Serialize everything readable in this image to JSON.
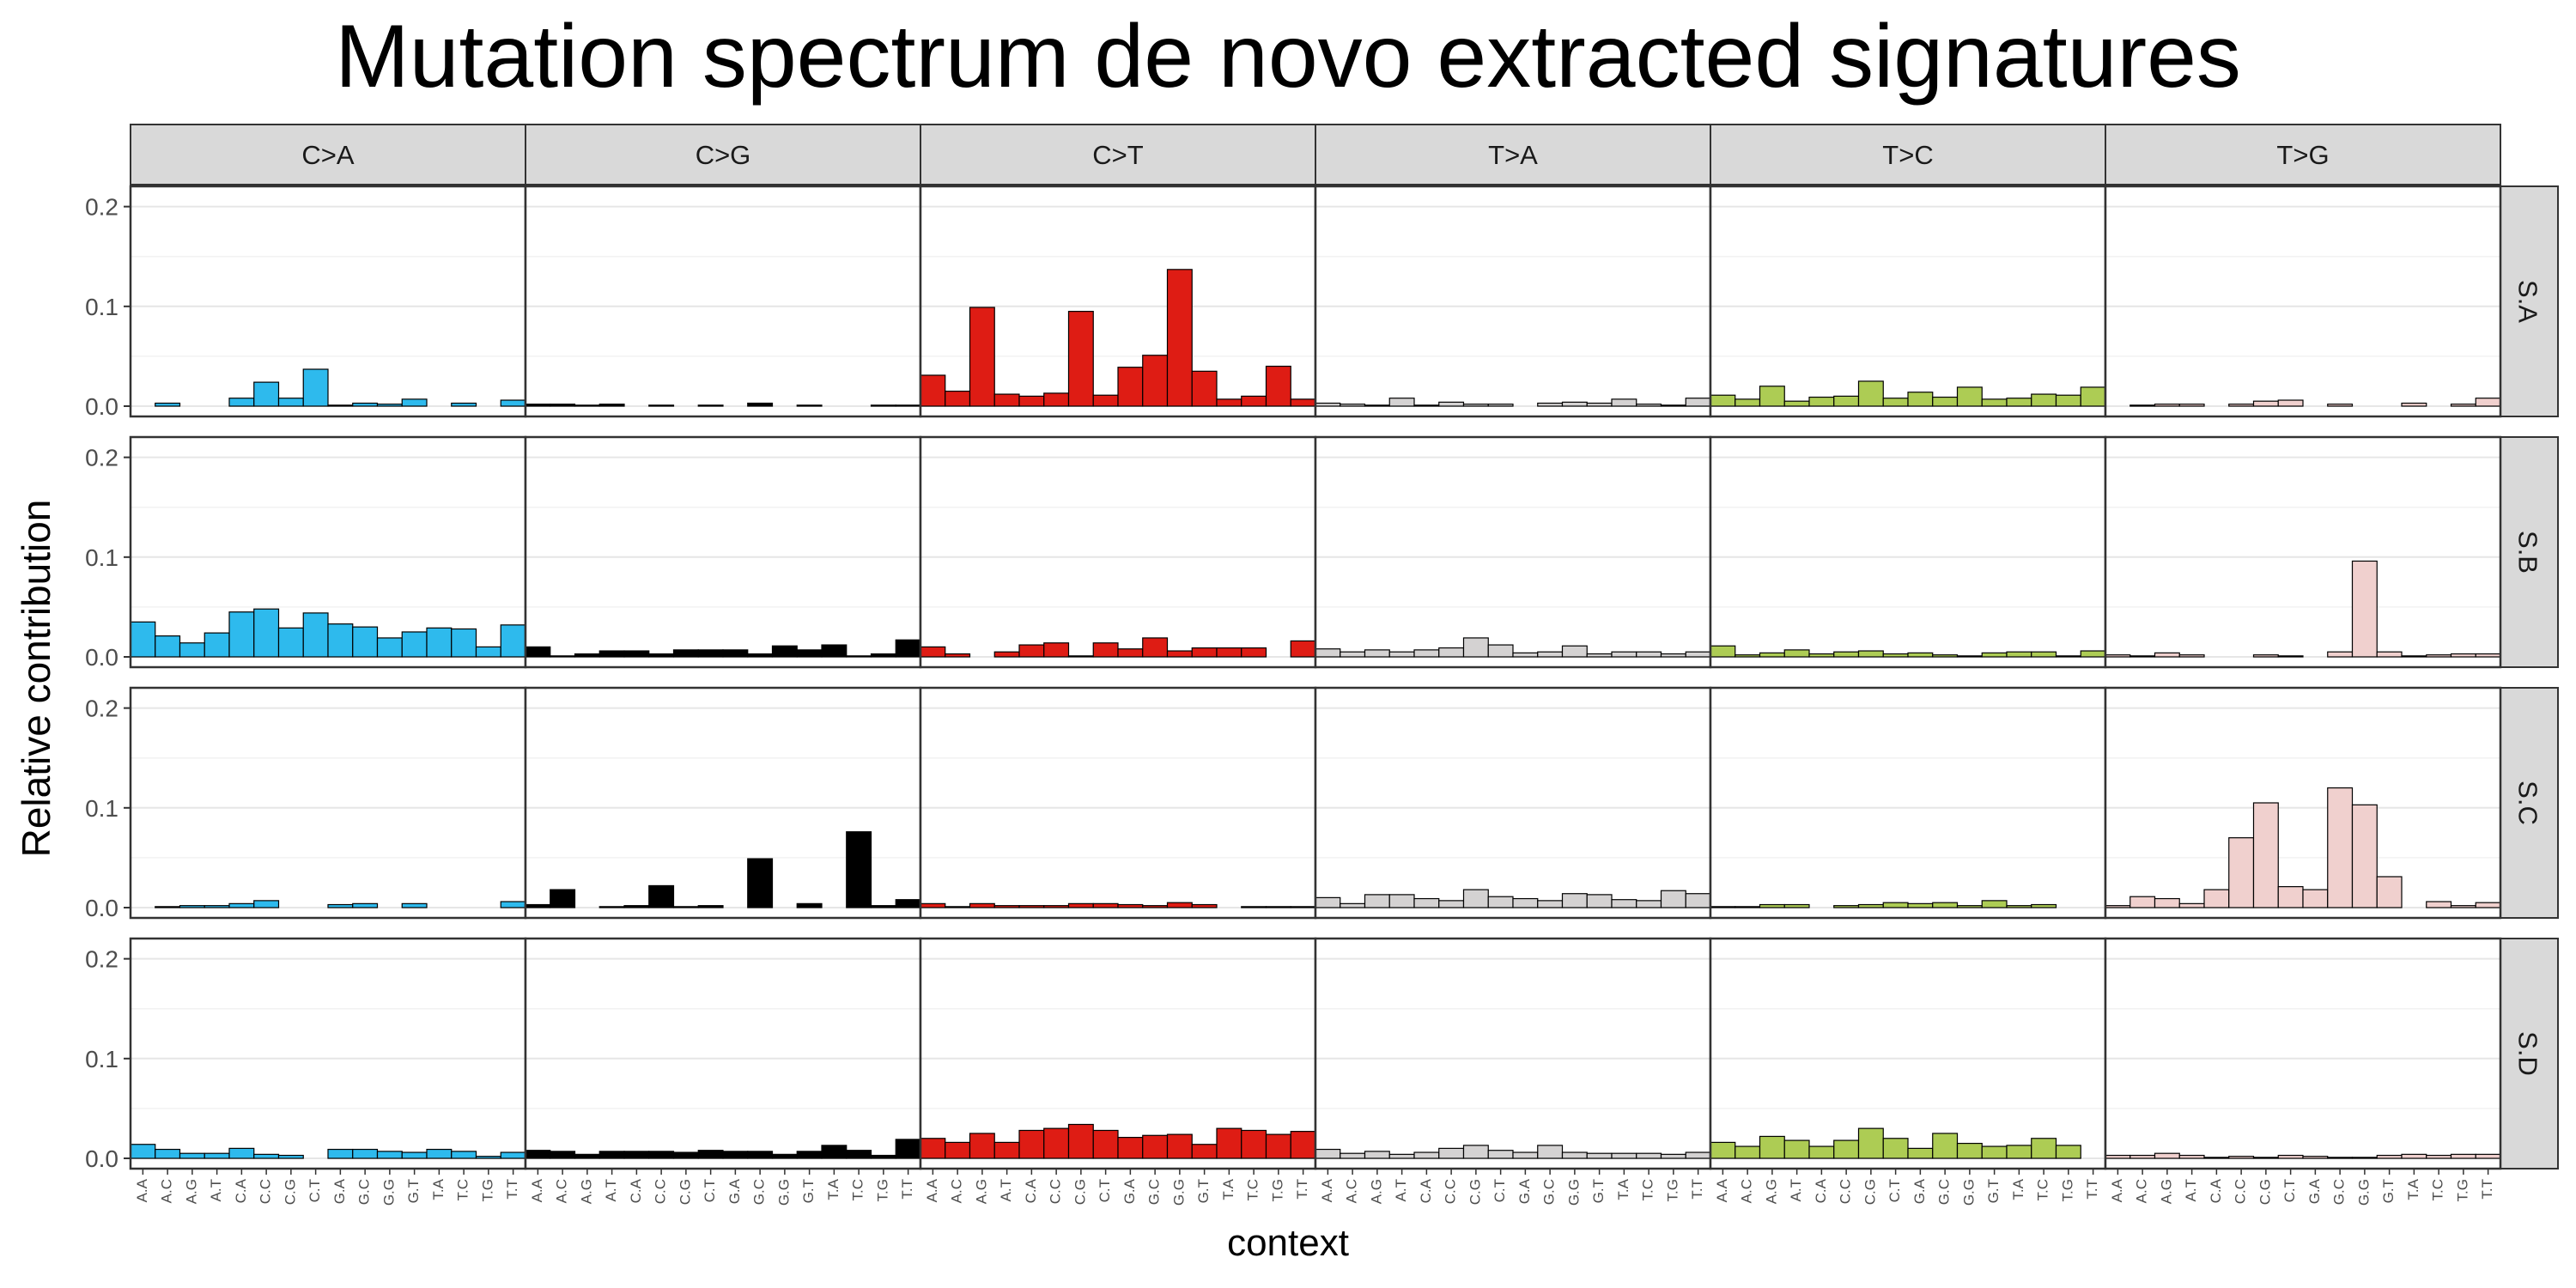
{
  "chart_data": {
    "type": "bar",
    "title": "Mutation spectrum de novo extracted signatures",
    "xlabel": "context",
    "ylabel": "Relative contribution",
    "ylim": [
      0,
      0.21
    ],
    "yticks": [
      0.0,
      0.1,
      0.2
    ],
    "ytick_labels": [
      "0.0",
      "0.1",
      "0.2"
    ],
    "grid": true,
    "facet_columns": [
      "C>A",
      "C>G",
      "C>T",
      "T>A",
      "T>C",
      "T>G"
    ],
    "facet_rows": [
      "S.A",
      "S.B",
      "S.C",
      "S.D"
    ],
    "colors": {
      "C>A": "#2EBAED",
      "C>G": "#000000",
      "C>T": "#DE1C14",
      "T>A": "#D4D2D2",
      "T>C": "#ADCC54",
      "T>G": "#F0D0CE"
    },
    "contexts": [
      "A.A",
      "A.C",
      "A.G",
      "A.T",
      "C.A",
      "C.C",
      "C.G",
      "C.T",
      "G.A",
      "G.C",
      "G.G",
      "G.T",
      "T.A",
      "T.C",
      "T.G",
      "T.T"
    ],
    "values": {
      "S.A": {
        "C>A": [
          0.0,
          0.003,
          0.0,
          0.0,
          0.008,
          0.024,
          0.008,
          0.037,
          0.001,
          0.003,
          0.002,
          0.007,
          0.0,
          0.003,
          0.0,
          0.006
        ],
        "C>G": [
          0.002,
          0.002,
          0.001,
          0.002,
          0.0,
          0.001,
          0.0,
          0.001,
          0.0,
          0.003,
          0.0,
          0.001,
          0.0,
          0.0,
          0.001,
          0.001
        ],
        "C>T": [
          0.031,
          0.015,
          0.099,
          0.012,
          0.01,
          0.013,
          0.095,
          0.011,
          0.039,
          0.051,
          0.137,
          0.035,
          0.007,
          0.01,
          0.04,
          0.007
        ],
        "T>A": [
          0.003,
          0.002,
          0.001,
          0.008,
          0.001,
          0.004,
          0.002,
          0.002,
          0.0,
          0.003,
          0.004,
          0.003,
          0.007,
          0.002,
          0.001,
          0.008
        ],
        "T>C": [
          0.011,
          0.007,
          0.02,
          0.005,
          0.009,
          0.01,
          0.025,
          0.008,
          0.014,
          0.009,
          0.019,
          0.007,
          0.008,
          0.012,
          0.011,
          0.019
        ],
        "T>G": [
          0.0,
          0.001,
          0.002,
          0.002,
          0.0,
          0.002,
          0.005,
          0.006,
          0.0,
          0.002,
          0.0,
          0.0,
          0.003,
          0.0,
          0.002,
          0.008
        ]
      },
      "S.B": {
        "C>A": [
          0.035,
          0.021,
          0.014,
          0.024,
          0.045,
          0.048,
          0.029,
          0.044,
          0.033,
          0.03,
          0.019,
          0.025,
          0.029,
          0.028,
          0.01,
          0.032
        ],
        "C>G": [
          0.01,
          0.001,
          0.003,
          0.006,
          0.006,
          0.003,
          0.007,
          0.007,
          0.007,
          0.003,
          0.011,
          0.007,
          0.012,
          0.001,
          0.003,
          0.017
        ],
        "C>T": [
          0.01,
          0.003,
          0.0,
          0.005,
          0.012,
          0.014,
          0.001,
          0.014,
          0.008,
          0.019,
          0.006,
          0.009,
          0.009,
          0.009,
          0.0,
          0.016
        ],
        "T>A": [
          0.008,
          0.005,
          0.007,
          0.005,
          0.007,
          0.009,
          0.019,
          0.012,
          0.004,
          0.005,
          0.011,
          0.003,
          0.005,
          0.005,
          0.003,
          0.005
        ],
        "T>C": [
          0.011,
          0.002,
          0.004,
          0.007,
          0.003,
          0.005,
          0.006,
          0.003,
          0.004,
          0.002,
          0.001,
          0.004,
          0.005,
          0.005,
          0.001,
          0.006
        ],
        "T>G": [
          0.002,
          0.001,
          0.004,
          0.002,
          0.0,
          0.0,
          0.002,
          0.001,
          0.0,
          0.005,
          0.096,
          0.005,
          0.001,
          0.002,
          0.003,
          0.003
        ]
      },
      "S.C": {
        "C>A": [
          0.0,
          0.001,
          0.002,
          0.002,
          0.004,
          0.007,
          0.0,
          0.0,
          0.003,
          0.004,
          0.0,
          0.004,
          0.0,
          0.0,
          0.0,
          0.006
        ],
        "C>G": [
          0.003,
          0.018,
          0.0,
          0.001,
          0.002,
          0.022,
          0.001,
          0.002,
          0.0,
          0.049,
          0.0,
          0.004,
          0.0,
          0.076,
          0.002,
          0.008
        ],
        "C>T": [
          0.004,
          0.001,
          0.004,
          0.002,
          0.002,
          0.002,
          0.004,
          0.004,
          0.003,
          0.002,
          0.005,
          0.003,
          0.0,
          0.001,
          0.001,
          0.001
        ],
        "T>A": [
          0.01,
          0.004,
          0.013,
          0.013,
          0.009,
          0.007,
          0.018,
          0.011,
          0.009,
          0.007,
          0.014,
          0.013,
          0.008,
          0.007,
          0.017,
          0.014
        ],
        "T>C": [
          0.001,
          0.001,
          0.003,
          0.003,
          0.0,
          0.002,
          0.003,
          0.005,
          0.004,
          0.005,
          0.002,
          0.007,
          0.002,
          0.003,
          0.0,
          0.0
        ],
        "T>G": [
          0.002,
          0.011,
          0.009,
          0.004,
          0.018,
          0.07,
          0.105,
          0.021,
          0.018,
          0.12,
          0.103,
          0.031,
          0.0,
          0.006,
          0.002,
          0.005
        ]
      },
      "S.D": {
        "C>A": [
          0.014,
          0.009,
          0.005,
          0.005,
          0.01,
          0.004,
          0.003,
          0.0,
          0.009,
          0.009,
          0.007,
          0.006,
          0.009,
          0.007,
          0.002,
          0.006
        ],
        "C>G": [
          0.008,
          0.007,
          0.004,
          0.007,
          0.007,
          0.007,
          0.006,
          0.008,
          0.007,
          0.007,
          0.004,
          0.007,
          0.013,
          0.008,
          0.003,
          0.019
        ],
        "C>T": [
          0.02,
          0.016,
          0.025,
          0.016,
          0.028,
          0.03,
          0.034,
          0.028,
          0.021,
          0.023,
          0.024,
          0.014,
          0.03,
          0.028,
          0.024,
          0.027
        ],
        "T>A": [
          0.009,
          0.005,
          0.007,
          0.004,
          0.006,
          0.01,
          0.013,
          0.008,
          0.006,
          0.013,
          0.006,
          0.005,
          0.005,
          0.005,
          0.004,
          0.006
        ],
        "T>C": [
          0.016,
          0.012,
          0.022,
          0.018,
          0.012,
          0.018,
          0.03,
          0.02,
          0.01,
          0.025,
          0.015,
          0.012,
          0.013,
          0.02,
          0.013,
          0.0
        ],
        "T>G": [
          0.003,
          0.003,
          0.005,
          0.003,
          0.001,
          0.002,
          0.001,
          0.003,
          0.002,
          0.001,
          0.001,
          0.003,
          0.004,
          0.003,
          0.004,
          0.004
        ]
      }
    }
  }
}
